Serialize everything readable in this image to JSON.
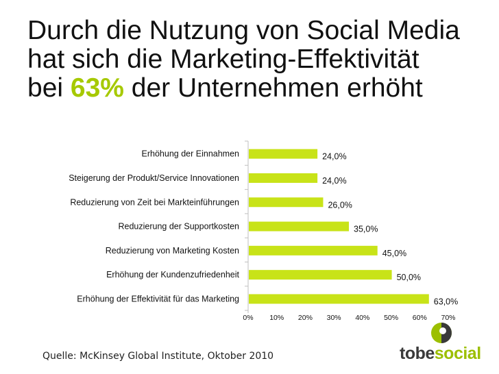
{
  "title": {
    "line1": "Durch die Nutzung von Social Media",
    "line2": "hat sich die Marketing-Effektivität",
    "line3_prefix": "bei",
    "highlight": "63%",
    "line3_suffix": "der Unternehmen erhöht"
  },
  "colors": {
    "bar": "#c8e318",
    "highlight": "#a6c900",
    "axis": "#bfbfbf",
    "logo_green": "#9cbf00",
    "logo_dark": "#3a3a3a"
  },
  "chart_data": {
    "type": "bar",
    "orientation": "horizontal",
    "categories": [
      "Erhöhung der Einnahmen",
      "Steigerung der Produkt/Service Innovationen",
      "Reduzierung von Zeit bei Markteinführungen",
      "Reduzierung der Supportkosten",
      "Reduzierung von Marketing Kosten",
      "Erhöhung der Kundenzufriedenheit",
      "Erhöhung der Effektivität für das Marketing"
    ],
    "values": [
      24,
      24,
      26,
      35,
      45,
      50,
      63
    ],
    "value_labels": [
      "24,0%",
      "24,0%",
      "26,0%",
      "35,0%",
      "45,0%",
      "50,0%",
      "63,0%"
    ],
    "x_ticks": [
      "0%",
      "10%",
      "20%",
      "30%",
      "40%",
      "50%",
      "60%",
      "70%"
    ],
    "xlim": [
      0,
      70
    ],
    "title": "",
    "xlabel": "",
    "ylabel": "",
    "grid": false
  },
  "source": "Quelle: McKinsey Global Institute, Oktober 2010",
  "logo": {
    "part1": "tobe",
    "part2": "social"
  }
}
